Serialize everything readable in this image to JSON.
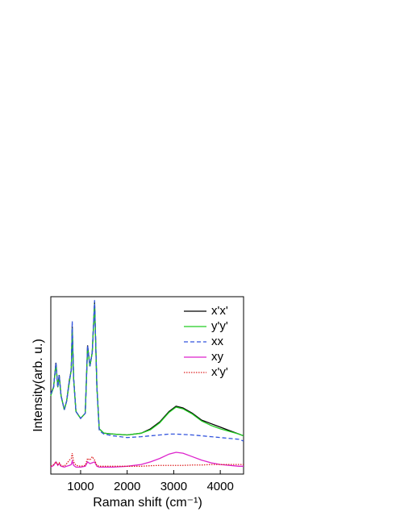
{
  "chart_data": {
    "type": "line",
    "xlabel": "Raman shift (cm⁻¹)",
    "ylabel": "Intensity(arb. u.)",
    "x": [
      360,
      420,
      470,
      510,
      540,
      580,
      650,
      700,
      760,
      800,
      820,
      850,
      900,
      1000,
      1100,
      1150,
      1200,
      1250,
      1300,
      1350,
      1400,
      1500,
      1700,
      2000,
      2300,
      2500,
      2700,
      2900,
      3050,
      3200,
      3400,
      3600,
      3800,
      4000,
      4200,
      4400,
      4500
    ],
    "series": [
      {
        "name": "x'x'",
        "color": "#000000",
        "style": "solid",
        "values": [
          0.46,
          0.5,
          0.64,
          0.5,
          0.57,
          0.45,
          0.37,
          0.42,
          0.54,
          0.6,
          0.85,
          0.55,
          0.36,
          0.32,
          0.35,
          0.74,
          0.62,
          0.7,
          0.99,
          0.5,
          0.26,
          0.235,
          0.23,
          0.225,
          0.235,
          0.26,
          0.3,
          0.36,
          0.39,
          0.38,
          0.35,
          0.31,
          0.29,
          0.27,
          0.25,
          0.23,
          0.22
        ]
      },
      {
        "name": "y'y'",
        "color": "#22cc22",
        "style": "solid",
        "values": [
          0.45,
          0.5,
          0.63,
          0.5,
          0.56,
          0.45,
          0.37,
          0.42,
          0.53,
          0.6,
          0.84,
          0.55,
          0.36,
          0.32,
          0.35,
          0.73,
          0.62,
          0.7,
          0.98,
          0.5,
          0.26,
          0.235,
          0.23,
          0.225,
          0.235,
          0.255,
          0.295,
          0.355,
          0.385,
          0.375,
          0.345,
          0.305,
          0.28,
          0.26,
          0.245,
          0.23,
          0.22
        ]
      },
      {
        "name": "xx",
        "color": "#3355dd",
        "style": "dashed",
        "values": [
          0.46,
          0.5,
          0.64,
          0.5,
          0.57,
          0.45,
          0.37,
          0.42,
          0.54,
          0.6,
          0.88,
          0.55,
          0.36,
          0.32,
          0.35,
          0.74,
          0.62,
          0.7,
          1.0,
          0.5,
          0.25,
          0.23,
          0.22,
          0.21,
          0.215,
          0.22,
          0.225,
          0.23,
          0.23,
          0.228,
          0.225,
          0.22,
          0.215,
          0.21,
          0.205,
          0.2,
          0.19
        ]
      },
      {
        "name": "xy",
        "color": "#dd22cc",
        "style": "solid",
        "values": [
          0.04,
          0.05,
          0.07,
          0.05,
          0.06,
          0.045,
          0.04,
          0.045,
          0.05,
          0.055,
          0.075,
          0.05,
          0.04,
          0.04,
          0.045,
          0.07,
          0.06,
          0.065,
          0.07,
          0.045,
          0.04,
          0.04,
          0.04,
          0.045,
          0.055,
          0.07,
          0.09,
          0.115,
          0.125,
          0.12,
          0.1,
          0.08,
          0.065,
          0.055,
          0.05,
          0.045,
          0.045
        ]
      },
      {
        "name": "x'y'",
        "color": "#dd2222",
        "style": "dotted",
        "values": [
          0.045,
          0.055,
          0.07,
          0.055,
          0.065,
          0.05,
          0.045,
          0.06,
          0.08,
          0.09,
          0.12,
          0.07,
          0.05,
          0.045,
          0.05,
          0.09,
          0.08,
          0.1,
          0.08,
          0.05,
          0.045,
          0.045,
          0.045,
          0.045,
          0.045,
          0.048,
          0.05,
          0.05,
          0.05,
          0.05,
          0.052,
          0.052,
          0.055,
          0.055,
          0.055,
          0.055,
          0.055
        ]
      }
    ],
    "xlim": [
      360,
      4500
    ],
    "ylim": [
      0,
      1.02
    ],
    "xticks": [
      1000,
      2000,
      3000,
      4000
    ],
    "legend": "upper right"
  }
}
